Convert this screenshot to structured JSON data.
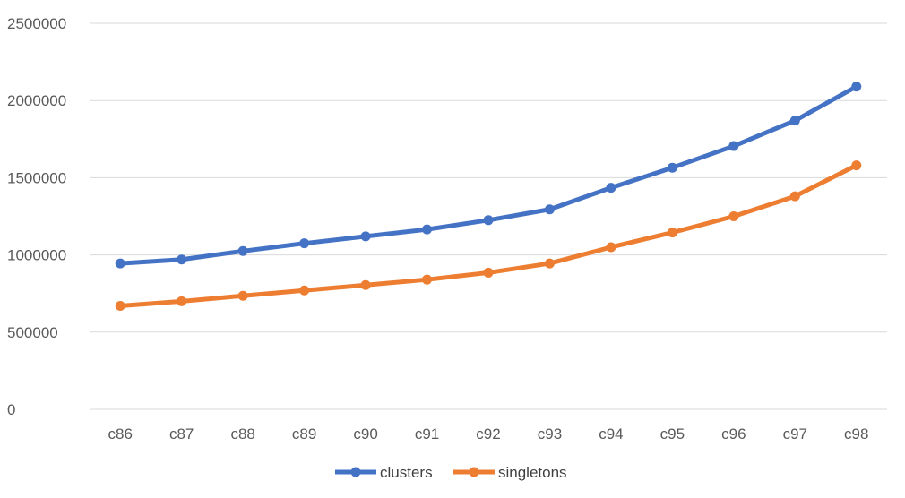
{
  "chart_data": {
    "type": "line",
    "title": "",
    "xlabel": "",
    "ylabel": "",
    "categories": [
      "c86",
      "c87",
      "c88",
      "c89",
      "c90",
      "c91",
      "c92",
      "c93",
      "c94",
      "c95",
      "c96",
      "c97",
      "c98"
    ],
    "ylim": [
      0,
      2500000
    ],
    "yticks": [
      "0",
      "500000",
      "1000000",
      "1500000",
      "2000000",
      "2500000"
    ],
    "grid": true,
    "legend_position": "bottom",
    "series": [
      {
        "name": "clusters",
        "color": "#4472c4",
        "values": [
          945000,
          970000,
          1025000,
          1075000,
          1120000,
          1165000,
          1225000,
          1295000,
          1435000,
          1565000,
          1705000,
          1870000,
          2090000
        ]
      },
      {
        "name": "singletons",
        "color": "#ed7d31",
        "values": [
          670000,
          700000,
          735000,
          770000,
          805000,
          840000,
          885000,
          945000,
          1050000,
          1145000,
          1250000,
          1380000,
          1580000
        ]
      }
    ]
  }
}
